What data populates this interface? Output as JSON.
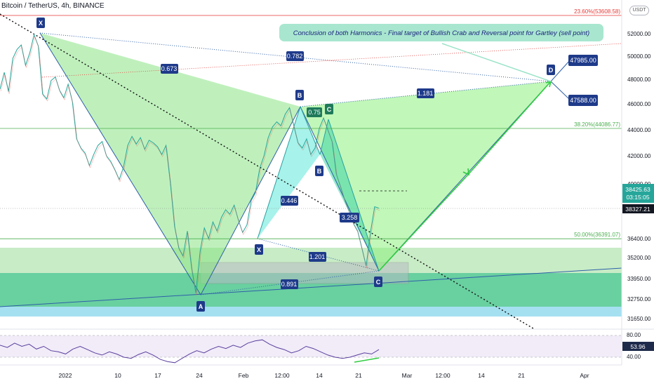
{
  "header": {
    "title": "Bitcoin / TetherUS, 4h, BINANCE",
    "currency_badge": "USDT"
  },
  "chart_data": {
    "type": "line",
    "symbol": "BTCUSDT",
    "timeframe": "4h",
    "exchange": "BINANCE",
    "x_ticks": [
      "2022",
      "10",
      "17",
      "24",
      "Feb",
      "12:00",
      "14",
      "21",
      "Mar",
      "12:00",
      "14",
      "21",
      "Apr"
    ],
    "y_ticks": [
      52000,
      50000,
      48000,
      46000,
      44000,
      42000,
      40000,
      36400,
      35200,
      33950,
      32750,
      31650
    ],
    "y_tick_labels": [
      "52000.00",
      "50000.00",
      "48000.00",
      "46000.00",
      "44000.00",
      "42000.00",
      "40000.00",
      "36400.00",
      "35200.00",
      "33950.00",
      "32750.00",
      "31650.00"
    ],
    "current_price": "38425.63",
    "countdown": "03:15:05",
    "crosshair_price": "38327.21",
    "fib_levels": [
      {
        "label": "23.60%(53608.58)",
        "price": 53608.58,
        "color": "#e53935"
      },
      {
        "label": "38.20%(44086.77)",
        "price": 44086.77,
        "color": "#4caf50"
      },
      {
        "label": "50.00%(36391.07)",
        "price": 36391.07,
        "color": "#4caf50"
      }
    ],
    "annotation": "Conclusion of both Harmonics - Final target of Bullish Crab and Reversal point for Gartley (sell point)",
    "pattern_points": [
      {
        "label": "X",
        "price": 52300
      },
      {
        "label": "A",
        "price": 32950
      },
      {
        "label": "X",
        "price": 36600
      },
      {
        "label": "B",
        "price": 45800
      },
      {
        "label": "B",
        "price": 41200
      },
      {
        "label": "C",
        "price": 45000
      },
      {
        "label": "C",
        "price": 34100
      },
      {
        "label": "D",
        "price": 47800
      }
    ],
    "ratios": [
      "0.673",
      "0.782",
      "1.181",
      "0.75",
      "0.446",
      "3.258",
      "1.201",
      "0.891"
    ],
    "targets": [
      "47985.00",
      "47588.00"
    ],
    "price_series": [
      {
        "t": 0,
        "c": 47200
      },
      {
        "t": 2,
        "c": 48600
      },
      {
        "t": 4,
        "c": 47000
      },
      {
        "t": 6,
        "c": 49800
      },
      {
        "t": 8,
        "c": 50600
      },
      {
        "t": 10,
        "c": 51000
      },
      {
        "t": 12,
        "c": 49200
      },
      {
        "t": 14,
        "c": 50300
      },
      {
        "t": 16,
        "c": 51900
      },
      {
        "t": 18,
        "c": 50900
      },
      {
        "t": 20,
        "c": 46800
      },
      {
        "t": 22,
        "c": 46400
      },
      {
        "t": 24,
        "c": 47900
      },
      {
        "t": 26,
        "c": 48200
      },
      {
        "t": 28,
        "c": 47100
      },
      {
        "t": 30,
        "c": 46500
      },
      {
        "t": 32,
        "c": 47600
      },
      {
        "t": 34,
        "c": 46200
      },
      {
        "t": 36,
        "c": 43300
      },
      {
        "t": 38,
        "c": 42600
      },
      {
        "t": 40,
        "c": 42200
      },
      {
        "t": 42,
        "c": 41300
      },
      {
        "t": 44,
        "c": 42100
      },
      {
        "t": 46,
        "c": 42800
      },
      {
        "t": 48,
        "c": 43100
      },
      {
        "t": 50,
        "c": 42000
      },
      {
        "t": 52,
        "c": 41600
      },
      {
        "t": 54,
        "c": 41000
      },
      {
        "t": 56,
        "c": 40300
      },
      {
        "t": 58,
        "c": 41200
      },
      {
        "t": 60,
        "c": 42800
      },
      {
        "t": 62,
        "c": 43500
      },
      {
        "t": 64,
        "c": 42900
      },
      {
        "t": 66,
        "c": 43400
      },
      {
        "t": 68,
        "c": 42500
      },
      {
        "t": 70,
        "c": 43200
      },
      {
        "t": 72,
        "c": 43000
      },
      {
        "t": 74,
        "c": 42700
      },
      {
        "t": 76,
        "c": 42100
      },
      {
        "t": 78,
        "c": 42800
      },
      {
        "t": 80,
        "c": 40100
      },
      {
        "t": 82,
        "c": 37200
      },
      {
        "t": 84,
        "c": 35800
      },
      {
        "t": 86,
        "c": 35300
      },
      {
        "t": 88,
        "c": 36900
      },
      {
        "t": 90,
        "c": 34600
      },
      {
        "t": 92,
        "c": 33100
      },
      {
        "t": 94,
        "c": 35600
      },
      {
        "t": 96,
        "c": 37100
      },
      {
        "t": 98,
        "c": 36400
      },
      {
        "t": 100,
        "c": 37500
      },
      {
        "t": 102,
        "c": 36900
      },
      {
        "t": 104,
        "c": 37800
      },
      {
        "t": 106,
        "c": 38300
      },
      {
        "t": 108,
        "c": 38000
      },
      {
        "t": 110,
        "c": 38600
      },
      {
        "t": 112,
        "c": 37600
      },
      {
        "t": 114,
        "c": 36800
      },
      {
        "t": 116,
        "c": 37300
      },
      {
        "t": 118,
        "c": 38900
      },
      {
        "t": 120,
        "c": 39400
      },
      {
        "t": 122,
        "c": 41100
      },
      {
        "t": 124,
        "c": 42000
      },
      {
        "t": 126,
        "c": 43400
      },
      {
        "t": 128,
        "c": 44200
      },
      {
        "t": 130,
        "c": 44600
      },
      {
        "t": 132,
        "c": 44300
      },
      {
        "t": 134,
        "c": 45200
      },
      {
        "t": 136,
        "c": 45700
      },
      {
        "t": 138,
        "c": 44300
      },
      {
        "t": 140,
        "c": 43000
      },
      {
        "t": 142,
        "c": 42600
      },
      {
        "t": 144,
        "c": 43300
      },
      {
        "t": 146,
        "c": 42100
      },
      {
        "t": 148,
        "c": 42600
      },
      {
        "t": 150,
        "c": 44100
      },
      {
        "t": 152,
        "c": 44900
      },
      {
        "t": 154,
        "c": 44000
      },
      {
        "t": 156,
        "c": 43100
      },
      {
        "t": 158,
        "c": 40700
      },
      {
        "t": 160,
        "c": 39800
      },
      {
        "t": 162,
        "c": 38900
      },
      {
        "t": 164,
        "c": 38200
      },
      {
        "t": 166,
        "c": 37400
      },
      {
        "t": 168,
        "c": 36900
      },
      {
        "t": 170,
        "c": 35800
      },
      {
        "t": 172,
        "c": 34700
      },
      {
        "t": 174,
        "c": 36800
      },
      {
        "t": 176,
        "c": 38500
      },
      {
        "t": 178,
        "c": 38400
      }
    ],
    "rsi": {
      "value": "53.96",
      "levels": [
        "80.00",
        "40.00"
      ],
      "series": [
        62,
        58,
        66,
        60,
        64,
        55,
        60,
        52,
        50,
        46,
        55,
        60,
        54,
        48,
        44,
        50,
        46,
        40,
        38,
        45,
        50,
        44,
        36,
        32,
        30,
        38,
        46,
        52,
        48,
        55,
        60,
        56,
        62,
        58,
        66,
        70,
        72,
        64,
        58,
        54,
        48,
        52,
        60,
        56,
        50,
        44,
        40,
        38,
        40,
        44,
        48,
        46,
        54
      ]
    }
  }
}
